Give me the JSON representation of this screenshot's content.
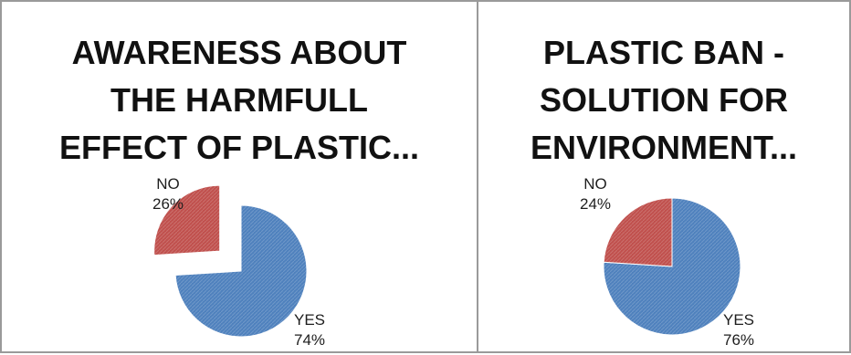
{
  "chart_data": [
    {
      "type": "pie",
      "title_lines": [
        "AWARENESS ABOUT",
        "THE HARMFULL",
        "EFFECT OF PLASTIC..."
      ],
      "slices": [
        {
          "label": "YES",
          "value": 74,
          "pct_label": "74%",
          "color": "#4F81BD",
          "exploded": false
        },
        {
          "label": "NO",
          "value": 26,
          "pct_label": "26%",
          "color": "#C0504D",
          "exploded": true
        }
      ]
    },
    {
      "type": "pie",
      "title_lines": [
        "PLASTIC BAN -",
        "SOLUTION FOR",
        "ENVIRONMENT..."
      ],
      "slices": [
        {
          "label": "YES",
          "value": 76,
          "pct_label": "76%",
          "color": "#4F81BD",
          "exploded": false
        },
        {
          "label": "NO",
          "value": 24,
          "pct_label": "24%",
          "color": "#C0504D",
          "exploded": false
        }
      ]
    }
  ]
}
